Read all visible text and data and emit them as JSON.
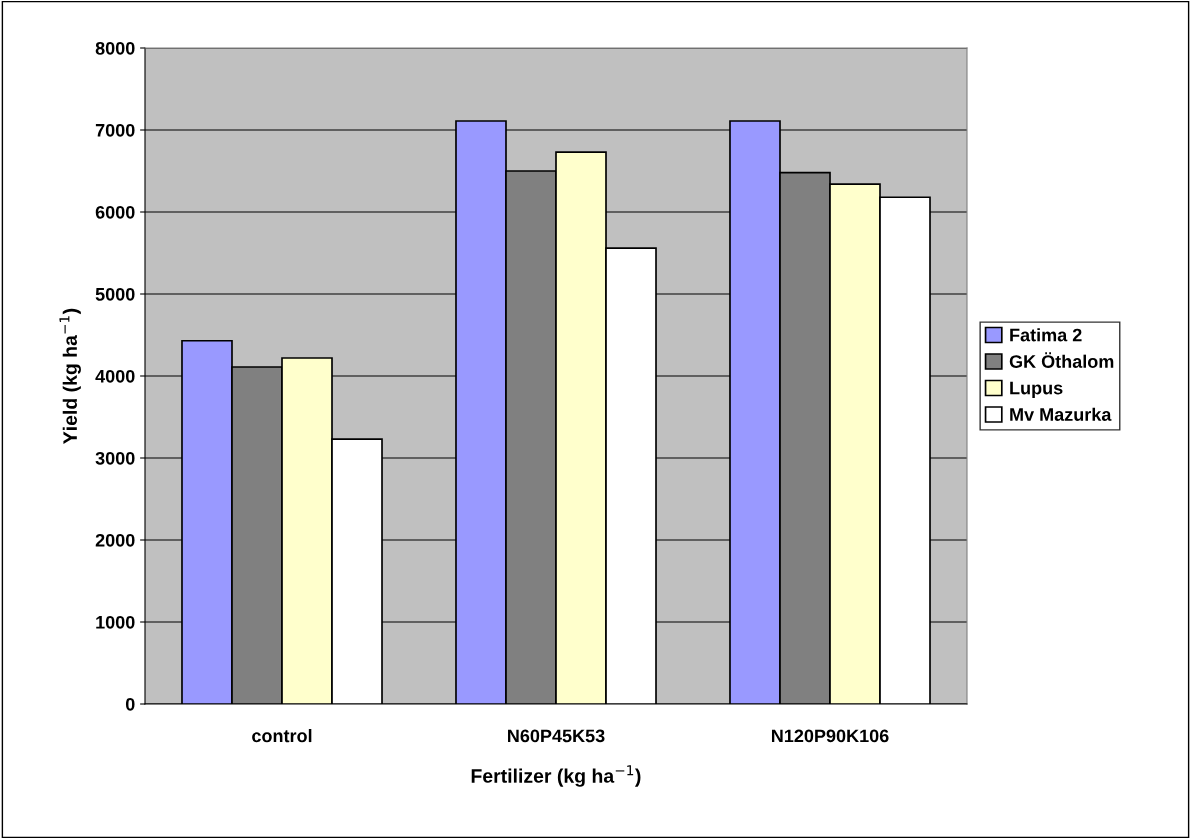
{
  "chart_data": {
    "type": "bar",
    "xlabel": "Fertilizer (kg ha$^{−1}$)",
    "ylabel": "Yield (kg ha$^{−1}$)",
    "categories": [
      "control",
      "N60P45K53",
      "N120P90K106"
    ],
    "series": [
      {
        "name": "Fatima 2",
        "color": "#9999ff",
        "values": [
          4430,
          7110,
          7110
        ]
      },
      {
        "name": "GK Öthalom",
        "color": "#808080",
        "values": [
          4110,
          6500,
          6480
        ]
      },
      {
        "name": "Lupus",
        "color": "#ffffcc",
        "values": [
          4220,
          6730,
          6340
        ]
      },
      {
        "name": "Mv Mazurka",
        "color": "#ffffff",
        "values": [
          3230,
          5560,
          6180
        ]
      }
    ],
    "ylim": [
      0,
      8000
    ],
    "yticks": [
      0,
      1000,
      2000,
      3000,
      4000,
      5000,
      6000,
      7000,
      8000
    ],
    "grid": "y",
    "legend": "right"
  }
}
